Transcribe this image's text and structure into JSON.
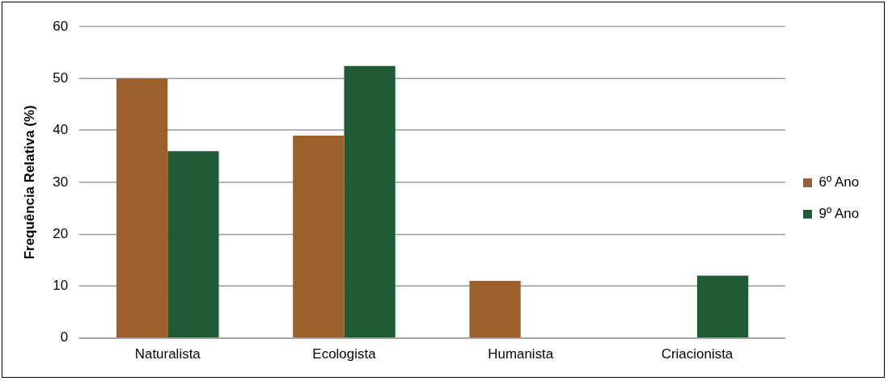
{
  "chart_data": {
    "type": "bar",
    "ylabel": "Frequência Relativa (%)",
    "categories": [
      "Naturalista",
      "Ecologista",
      "Humanista",
      "Criacionista"
    ],
    "series": [
      {
        "name": "6º Ano",
        "color": "#9c5f2e",
        "values": [
          50,
          39,
          11,
          0
        ]
      },
      {
        "name": "9º Ano",
        "color": "#1f5b34",
        "values": [
          36,
          52.4,
          0,
          12
        ]
      }
    ],
    "ylim": [
      0,
      60
    ],
    "yticks": [
      0,
      10,
      20,
      30,
      40,
      50,
      60
    ],
    "grid": "y",
    "legend": "right"
  }
}
